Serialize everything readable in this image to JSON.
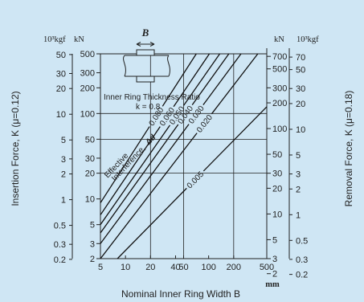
{
  "chart_data": {
    "type": "line",
    "x_scale": "log",
    "y_scale": "log",
    "xlim": [
      5,
      500
    ],
    "ylim_kN": [
      2,
      500
    ],
    "x_ticks": [
      {
        "value": 5,
        "label": "5"
      },
      {
        "value": 10,
        "label": "10"
      },
      {
        "value": 20,
        "label": "20"
      },
      {
        "value": 40,
        "label": "40"
      },
      {
        "value": 50,
        "label": "50"
      },
      {
        "value": 100,
        "label": "100"
      },
      {
        "value": 200,
        "label": "200"
      },
      {
        "value": 500,
        "label": "500"
      }
    ],
    "x_unit": "mm",
    "xlabel": "Nominal Inner Ring Width B",
    "left": {
      "title": "Insertion Force, K (μ=0.12)",
      "unit_kgf": "10³kgf",
      "unit_kN": "kN",
      "kgf_ticks": [
        {
          "value": 50,
          "label": "50"
        },
        {
          "value": 30,
          "label": "30"
        },
        {
          "value": 20,
          "label": "20"
        },
        {
          "value": 10,
          "label": "10"
        },
        {
          "value": 5,
          "label": "5"
        },
        {
          "value": 3,
          "label": "3"
        },
        {
          "value": 2,
          "label": "2"
        },
        {
          "value": 1,
          "label": "1"
        },
        {
          "value": 0.5,
          "label": "0.5"
        },
        {
          "value": 0.3,
          "label": "0.3"
        },
        {
          "value": 0.2,
          "label": "0.2"
        }
      ],
      "kN_ticks": [
        {
          "value": 500,
          "label": "500"
        },
        {
          "value": 300,
          "label": "300"
        },
        {
          "value": 200,
          "label": "200"
        },
        {
          "value": 100,
          "label": "100"
        },
        {
          "value": 50,
          "label": "50"
        },
        {
          "value": 30,
          "label": "30"
        },
        {
          "value": 20,
          "label": "20"
        },
        {
          "value": 10,
          "label": "10"
        },
        {
          "value": 5,
          "label": "5"
        },
        {
          "value": 3,
          "label": "3"
        },
        {
          "value": 2,
          "label": "2"
        }
      ]
    },
    "right": {
      "title": "Removal Force, K (μ=0.18)",
      "unit_kgf": "10³kgf",
      "unit_kN": "kN",
      "kN_ticks": [
        {
          "value": 700,
          "label": "700"
        },
        {
          "value": 500,
          "label": "500"
        },
        {
          "value": 300,
          "label": "300"
        },
        {
          "value": 200,
          "label": "200"
        },
        {
          "value": 100,
          "label": "100"
        },
        {
          "value": 50,
          "label": "50"
        },
        {
          "value": 30,
          "label": "30"
        },
        {
          "value": 20,
          "label": "20"
        },
        {
          "value": 10,
          "label": "10"
        },
        {
          "value": 5,
          "label": "5"
        },
        {
          "value": 3,
          "label": "3"
        },
        {
          "value": 2,
          "label": "2"
        }
      ],
      "kgf_ticks": [
        {
          "value": 70,
          "label": "70"
        },
        {
          "value": 50,
          "label": "50"
        },
        {
          "value": 30,
          "label": "30"
        },
        {
          "value": 20,
          "label": "20"
        },
        {
          "value": 10,
          "label": "10"
        },
        {
          "value": 5,
          "label": "5"
        },
        {
          "value": 3,
          "label": "3"
        },
        {
          "value": 2,
          "label": "2"
        },
        {
          "value": 1,
          "label": "1"
        },
        {
          "value": 0.5,
          "label": "0.5"
        },
        {
          "value": 0.3,
          "label": "0.3"
        },
        {
          "value": 0.2,
          "label": "0.2"
        }
      ]
    },
    "series": [
      {
        "name": "0.080",
        "x": [
          5,
          71
        ],
        "y_kN": [
          9,
          500
        ]
      },
      {
        "name": "0.060",
        "x": [
          5,
          102
        ],
        "y_kN": [
          6.5,
          500
        ]
      },
      {
        "name": "0.050",
        "x": [
          5,
          136
        ],
        "y_kN": [
          5,
          500
        ]
      },
      {
        "name": "0.040",
        "x": [
          5,
          175
        ],
        "y_kN": [
          4,
          500
        ]
      },
      {
        "name": "0.030",
        "x": [
          5,
          245
        ],
        "y_kN": [
          3,
          500
        ]
      },
      {
        "name": "0.020",
        "x": [
          5,
          390
        ],
        "y_kN": [
          2,
          500
        ]
      },
      {
        "name": "0.005",
        "x": [
          8,
          500
        ],
        "y_kN": [
          2,
          120
        ]
      }
    ],
    "annotations": {
      "diagram_label": "B",
      "ratio_text": "Inner Ring Thickness Ratio",
      "ratio_value": "k = 0.8",
      "effective_line1": "Effective",
      "effective_line2": "Interference,",
      "delta_d": "Δd"
    },
    "grid": true
  }
}
